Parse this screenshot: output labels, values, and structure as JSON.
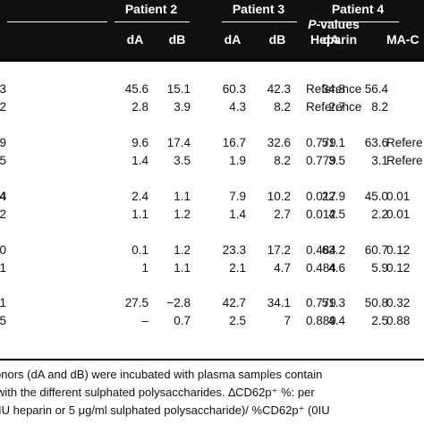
{
  "table": {
    "group_headers": {
      "patient2": "Patient 2",
      "patient3": "Patient 3",
      "patient4": "Patient 4",
      "pvalues_prefix": "P",
      "pvalues_suffix": "-values",
      "ma_c": "MA-C"
    },
    "sub_headers": {
      "p2_da": "dA",
      "p2_db": "dB",
      "p3_da": "dA",
      "p3_db": "dB",
      "p4_da": "dA",
      "p4_db": "dB",
      "heparin": "Heparin"
    },
    "rows": [
      {
        "lead": "3",
        "lead_bold": false,
        "p2_da": "45.6",
        "p2_db": "15.1",
        "p3_da": "60.3",
        "p3_db": "42.3",
        "p4_da": "34.8",
        "p4_db": "56.4",
        "heparin": "Reference",
        "ma_c": ""
      },
      {
        "lead": "2",
        "lead_bold": false,
        "p2_da": "2.8",
        "p2_db": "3.9",
        "p3_da": "4.3",
        "p3_db": "8.2",
        "p4_da": "2.7",
        "p4_db": "8.2",
        "heparin": "Reference",
        "ma_c": ""
      },
      {
        "lead": "9",
        "lead_bold": false,
        "p2_da": "9.6",
        "p2_db": "17.4",
        "p3_da": "16.7",
        "p3_db": "32.6",
        "p4_da": "51.1",
        "p4_db": "63.6",
        "heparin": "0.779",
        "ma_c": "Refere"
      },
      {
        "lead": "5",
        "lead_bold": false,
        "p2_da": "1.4",
        "p2_db": "3.5",
        "p3_da": "1.9",
        "p3_db": "8.2",
        "p4_da": "3.5",
        "p4_db": "3.1",
        "heparin": "0.779",
        "ma_c": "Refere"
      },
      {
        "lead": "4",
        "lead_bold": true,
        "p2_da": "2.4",
        "p2_db": "1.1",
        "p3_da": "7.9",
        "p3_db": "10.2",
        "p4_da": "22.9",
        "p4_db": "45.0",
        "heparin": "0.017",
        "ma_c": "0.01"
      },
      {
        "lead": "2",
        "lead_bold": false,
        "p2_da": "1.1",
        "p2_db": "1.2",
        "p3_da": "1.4",
        "p3_db": "2.7",
        "p4_da": "4.5",
        "p4_db": "2.2",
        "heparin": "0.012",
        "ma_c": "0.01"
      },
      {
        "lead": "0",
        "lead_bold": false,
        "p2_da": "0.1",
        "p2_db": "1.2",
        "p3_da": "23.3",
        "p3_db": "17.2",
        "p4_da": "63.2",
        "p4_db": "60.7",
        "heparin": "0.484",
        "ma_c": "0.12"
      },
      {
        "lead": "1",
        "lead_bold": false,
        "p2_da": "1",
        "p2_db": "1.1",
        "p3_da": "2.1",
        "p3_db": "4.7",
        "p4_da": "4.6",
        "p4_db": "5.9",
        "heparin": "0.484",
        "ma_c": "0.12"
      },
      {
        "lead": "1",
        "lead_bold": false,
        "p2_da": "27.5",
        "p2_db": "−2.8",
        "p3_da": "42.7",
        "p3_db": "34.1",
        "p4_da": "51.3",
        "p4_db": "50.8",
        "heparin": "0.779",
        "ma_c": "0.32"
      },
      {
        "lead": "5",
        "lead_bold": false,
        "p2_da": "–",
        "p2_db": "0.7",
        "p3_da": "2.5",
        "p3_db": "7",
        "p4_da": "4.4",
        "p4_db": "2.5",
        "heparin": "0.889",
        "ma_c": "0.88"
      }
    ]
  },
  "footnote": {
    "line1": "onors (dA and dB) were incubated with plasma samples contain",
    "line2": "with the different sulphated polysaccharides. ∆CD62p⁺ %: per",
    "line3": "IU heparin or 5 μg/ml sulphated polysaccharide)/ %CD62p⁺ (0IU"
  }
}
